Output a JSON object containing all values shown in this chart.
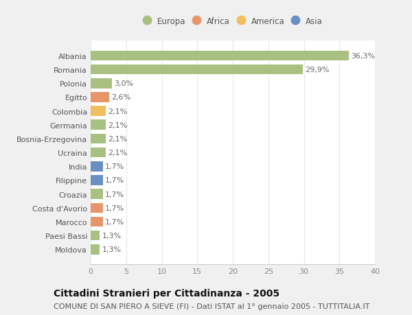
{
  "categories": [
    "Moldova",
    "Paesi Bassi",
    "Marocco",
    "Costa d'Avorio",
    "Croazia",
    "Filippine",
    "India",
    "Ucraina",
    "Bosnia-Erzegovina",
    "Germania",
    "Colombia",
    "Egitto",
    "Polonia",
    "Romania",
    "Albania"
  ],
  "values": [
    1.3,
    1.3,
    1.7,
    1.7,
    1.7,
    1.7,
    1.7,
    2.1,
    2.1,
    2.1,
    2.1,
    2.6,
    3.0,
    29.9,
    36.3
  ],
  "colors": [
    "#a8c080",
    "#a8c080",
    "#e8956a",
    "#e8956a",
    "#a8c080",
    "#6b8fc2",
    "#6b8fc2",
    "#a8c080",
    "#a8c080",
    "#a8c080",
    "#f0c060",
    "#e8956a",
    "#a8c080",
    "#a8c080",
    "#a8c080"
  ],
  "labels": [
    "1,3%",
    "1,3%",
    "1,7%",
    "1,7%",
    "1,7%",
    "1,7%",
    "1,7%",
    "2,1%",
    "2,1%",
    "2,1%",
    "2,1%",
    "2,6%",
    "3,0%",
    "29,9%",
    "36,3%"
  ],
  "legend": [
    {
      "label": "Europa",
      "color": "#a8c080"
    },
    {
      "label": "Africa",
      "color": "#e8956a"
    },
    {
      "label": "America",
      "color": "#f0c060"
    },
    {
      "label": "Asia",
      "color": "#6b8fc2"
    }
  ],
  "xlim": [
    0,
    40
  ],
  "xticks": [
    0,
    5,
    10,
    15,
    20,
    25,
    30,
    35,
    40
  ],
  "title": "Cittadini Stranieri per Cittadinanza - 2005",
  "subtitle": "COMUNE DI SAN PIERO A SIEVE (FI) - Dati ISTAT al 1° gennaio 2005 - TUTTITALIA.IT",
  "fig_bg_color": "#f0f0f0",
  "plot_bg_color": "#ffffff",
  "grid_color": "#e8e8e8",
  "bar_height": 0.72,
  "title_fontsize": 10,
  "subtitle_fontsize": 8,
  "label_fontsize": 8,
  "tick_fontsize": 8,
  "legend_fontsize": 8.5
}
